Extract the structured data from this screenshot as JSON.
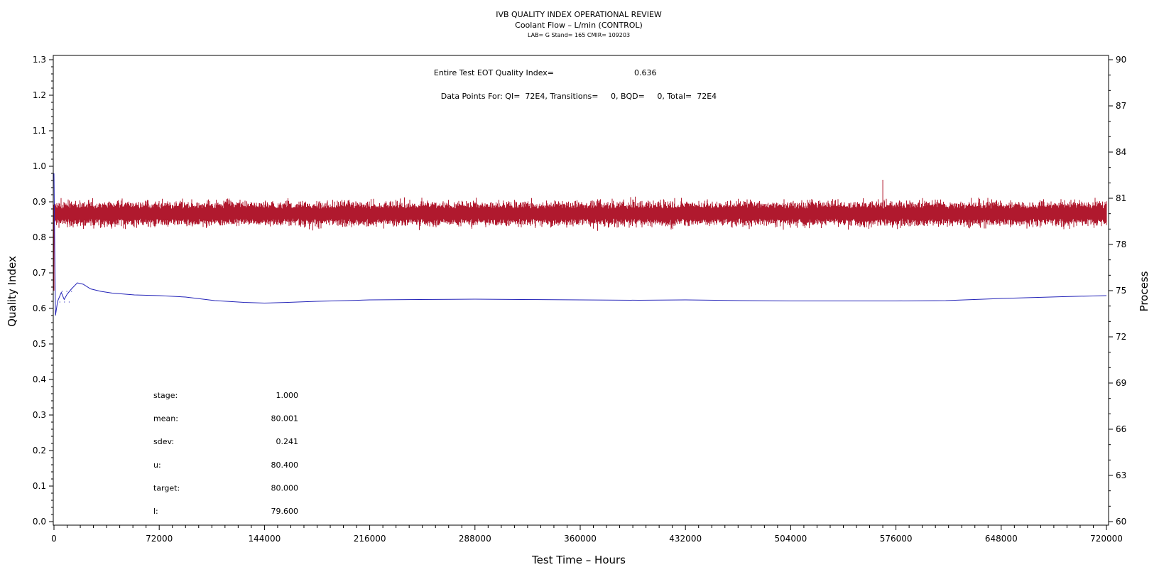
{
  "chart_data": {
    "type": "line",
    "title": "IVB QUALITY INDEX OPERATIONAL REVIEW",
    "subtitle": "Coolant Flow – L/min (CONTROL)",
    "subtitle2": "LAB= G Stand= 165 CMIR= 109203",
    "xlabel": "Test Time – Hours",
    "ylabel_left": "Quality Index",
    "ylabel_right": "Process",
    "xlim": [
      0,
      720000
    ],
    "ylim_left": [
      0,
      1.3
    ],
    "ylim_right": [
      60,
      90
    ],
    "x_ticks": [
      0,
      72000,
      144000,
      216000,
      288000,
      360000,
      432000,
      504000,
      576000,
      648000,
      720000
    ],
    "x_tick_labels": [
      "0",
      "72000",
      "144000",
      "216000",
      "288000",
      "360000",
      "432000",
      "504000",
      "576000",
      "648000",
      "720000"
    ],
    "y_left_ticks": [
      0.0,
      0.1,
      0.2,
      0.3,
      0.4,
      0.5,
      0.6,
      0.7,
      0.8,
      0.9,
      1.0,
      1.1,
      1.2,
      1.3
    ],
    "y_left_tick_labels": [
      "0.0",
      "0.1",
      "0.2",
      "0.3",
      "0.4",
      "0.5",
      "0.6",
      "0.7",
      "0.8",
      "0.9",
      "1.0",
      "1.1",
      "1.2",
      "1.3"
    ],
    "y_right_ticks": [
      60,
      63,
      66,
      69,
      72,
      75,
      78,
      81,
      84,
      87,
      90
    ],
    "y_right_tick_labels": [
      "60",
      "63",
      "66",
      "69",
      "72",
      "75",
      "78",
      "81",
      "84",
      "87",
      "90"
    ],
    "grid": false,
    "annotations": {
      "eot_label": "Entire Test EOT Quality Index=",
      "eot_value": "0.636",
      "datapoints_text": "Data Points For: QI=  72E4, Transitions=     0, BQD=     0, Total=  72E4"
    },
    "stats": [
      {
        "label": "stage:",
        "value": "1.000"
      },
      {
        "label": "mean:",
        "value": "80.001"
      },
      {
        "label": "sdev:",
        "value": "0.241"
      },
      {
        "label": "u:",
        "value": "80.400"
      },
      {
        "label": "target:",
        "value": "80.000"
      },
      {
        "label": "l:",
        "value": "79.600"
      }
    ],
    "series": [
      {
        "axis": "right",
        "color": "#b0192e",
        "band": {
          "center": 80.0,
          "core_half_width": 0.7,
          "spike_half_width": 1.3
        },
        "spikes": [
          {
            "x": 0,
            "y_low": 75.0,
            "y_high": 80.5
          },
          {
            "x": 567000,
            "y_low": 79.5,
            "y_high": 82.2
          },
          {
            "x": 577000,
            "y_low": 79.0,
            "y_high": 80.5
          }
        ]
      },
      {
        "axis": "left",
        "color": "#2323b8",
        "x": [
          0,
          1000,
          2500,
          5000,
          7000,
          9000,
          12000,
          16000,
          20000,
          25000,
          32000,
          40000,
          55000,
          72000,
          90000,
          110000,
          130000,
          144000,
          160000,
          180000,
          200000,
          216000,
          250000,
          288000,
          320000,
          360000,
          400000,
          432000,
          470000,
          504000,
          540000,
          576000,
          610000,
          648000,
          690000,
          720000
        ],
        "values": [
          0.98,
          0.58,
          0.62,
          0.645,
          0.625,
          0.64,
          0.655,
          0.672,
          0.668,
          0.655,
          0.648,
          0.643,
          0.638,
          0.636,
          0.632,
          0.622,
          0.617,
          0.615,
          0.617,
          0.62,
          0.622,
          0.624,
          0.625,
          0.626,
          0.625,
          0.624,
          0.623,
          0.624,
          0.622,
          0.621,
          0.621,
          0.621,
          0.622,
          0.628,
          0.633,
          0.636
        ]
      }
    ]
  }
}
